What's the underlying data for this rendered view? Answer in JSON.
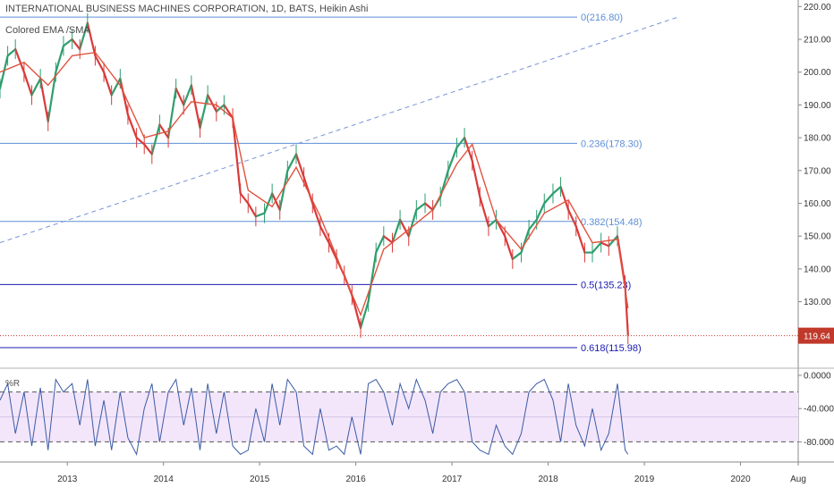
{
  "header": {
    "title": "INTERNATIONAL BUSINESS MACHINES CORPORATION, 1D, BATS, Heikin Ashi",
    "indicator": "Colored EMA /SMA"
  },
  "oscillator": {
    "name": "%R",
    "ticks": [
      "0.0000",
      "-40.0000",
      "-80.0000"
    ],
    "band_fill": "#f3e6fb",
    "line_color": "#3b5ba5"
  },
  "colors": {
    "up": "#2e9e6e",
    "down": "#d93a3a",
    "ma": "#e0533f",
    "fib_light": "#5d8fd6",
    "fib_dark": "#1b1bb0",
    "trend": "#7b93d6",
    "last_price": "#c0392b"
  },
  "chart_data": {
    "type": "line",
    "title": "INTERNATIONAL BUSINESS MACHINES CORPORATION, 1D, BATS, Heikin Ashi",
    "ylim": [
      110,
      222
    ],
    "y_ticks": [
      "220.00",
      "210.00",
      "200.00",
      "190.00",
      "180.00",
      "170.00",
      "160.00",
      "150.00",
      "140.00",
      "130.00"
    ],
    "x_ticks": [
      "2013",
      "2014",
      "2015",
      "2016",
      "2017",
      "2018",
      "2019",
      "2020",
      "Aug"
    ],
    "last_price": "119.64",
    "fib_levels": [
      {
        "label": "0(216.80)",
        "value": 216.8,
        "tone": "light"
      },
      {
        "label": "0.236(178.30)",
        "value": 178.3,
        "tone": "light"
      },
      {
        "label": "0.382(154.48)",
        "value": 154.48,
        "tone": "light"
      },
      {
        "label": "0.5(135.23)",
        "value": 135.23,
        "tone": "dark"
      },
      {
        "label": "0.618(115.98)",
        "value": 115.98,
        "tone": "dark"
      }
    ],
    "price_series": {
      "x": [
        2012.3,
        2012.38,
        2012.46,
        2012.55,
        2012.63,
        2012.72,
        2012.8,
        2012.88,
        2012.96,
        2013.05,
        2013.13,
        2013.21,
        2013.29,
        2013.38,
        2013.46,
        2013.55,
        2013.63,
        2013.72,
        2013.8,
        2013.88,
        2013.96,
        2014.05,
        2014.13,
        2014.21,
        2014.29,
        2014.38,
        2014.46,
        2014.55,
        2014.63,
        2014.72,
        2014.8,
        2014.88,
        2014.96,
        2015.05,
        2015.13,
        2015.21,
        2015.29,
        2015.38,
        2015.46,
        2015.55,
        2015.63,
        2015.72,
        2015.8,
        2015.88,
        2015.96,
        2016.05,
        2016.13,
        2016.21,
        2016.29,
        2016.38,
        2016.46,
        2016.55,
        2016.63,
        2016.72,
        2016.8,
        2016.88,
        2016.96,
        2017.05,
        2017.13,
        2017.21,
        2017.29,
        2017.38,
        2017.46,
        2017.55,
        2017.63,
        2017.72,
        2017.8,
        2017.88,
        2017.96,
        2018.05,
        2018.13,
        2018.21,
        2018.29,
        2018.38,
        2018.46,
        2018.55,
        2018.63,
        2018.72,
        2018.8,
        2018.83
      ],
      "y": [
        195,
        205,
        207,
        200,
        193,
        198,
        185,
        200,
        208,
        210,
        207,
        215,
        205,
        200,
        193,
        198,
        187,
        180,
        178,
        175,
        184,
        180,
        195,
        190,
        196,
        183,
        193,
        188,
        190,
        186,
        163,
        160,
        156,
        157,
        163,
        158,
        170,
        175,
        168,
        160,
        153,
        148,
        143,
        138,
        132,
        122,
        130,
        145,
        150,
        148,
        155,
        150,
        158,
        160,
        158,
        162,
        170,
        177,
        180,
        173,
        162,
        153,
        155,
        150,
        143,
        145,
        152,
        155,
        160,
        163,
        165,
        158,
        153,
        145,
        145,
        148,
        147,
        150,
        135,
        120
      ]
    },
    "ma_series": {
      "x": [
        2012.3,
        2012.55,
        2012.8,
        2013.05,
        2013.29,
        2013.55,
        2013.8,
        2014.05,
        2014.29,
        2014.55,
        2014.72,
        2014.88,
        2015.13,
        2015.38,
        2015.63,
        2015.88,
        2016.05,
        2016.29,
        2016.55,
        2016.8,
        2017.05,
        2017.21,
        2017.46,
        2017.72,
        2017.96,
        2018.21,
        2018.46,
        2018.72,
        2018.83
      ],
      "y": [
        200,
        203,
        196,
        205,
        206,
        196,
        180,
        182,
        191,
        190,
        186,
        164,
        159,
        171,
        156,
        138,
        126,
        146,
        152,
        158,
        172,
        178,
        155,
        146,
        157,
        161,
        148,
        149,
        128
      ]
    },
    "trend_line": {
      "x": [
        2012.3,
        2019.35
      ],
      "y": [
        148,
        216.8
      ]
    },
    "williams_r": {
      "x": [
        2012.3,
        2012.38,
        2012.46,
        2012.55,
        2012.63,
        2012.72,
        2012.8,
        2012.88,
        2012.96,
        2013.05,
        2013.13,
        2013.21,
        2013.29,
        2013.38,
        2013.46,
        2013.55,
        2013.63,
        2013.72,
        2013.8,
        2013.88,
        2013.96,
        2014.05,
        2014.13,
        2014.21,
        2014.29,
        2014.38,
        2014.46,
        2014.55,
        2014.63,
        2014.72,
        2014.8,
        2014.88,
        2014.96,
        2015.05,
        2015.13,
        2015.21,
        2015.29,
        2015.38,
        2015.46,
        2015.55,
        2015.63,
        2015.72,
        2015.8,
        2015.88,
        2015.96,
        2016.05,
        2016.13,
        2016.21,
        2016.29,
        2016.38,
        2016.46,
        2016.55,
        2016.63,
        2016.72,
        2016.8,
        2016.88,
        2016.96,
        2017.05,
        2017.13,
        2017.21,
        2017.29,
        2017.38,
        2017.46,
        2017.55,
        2017.63,
        2017.72,
        2017.8,
        2017.88,
        2017.96,
        2018.05,
        2018.13,
        2018.21,
        2018.29,
        2018.38,
        2018.46,
        2018.55,
        2018.63,
        2018.72,
        2018.8,
        2018.83
      ],
      "y": [
        -30,
        -10,
        -70,
        -20,
        -85,
        -15,
        -90,
        -5,
        -20,
        -10,
        -60,
        -5,
        -85,
        -30,
        -90,
        -20,
        -75,
        -95,
        -40,
        -10,
        -80,
        -20,
        -5,
        -60,
        -15,
        -90,
        -10,
        -70,
        -20,
        -85,
        -95,
        -90,
        -40,
        -80,
        -10,
        -60,
        -5,
        -20,
        -85,
        -95,
        -40,
        -90,
        -85,
        -95,
        -50,
        -95,
        -10,
        -5,
        -20,
        -60,
        -10,
        -40,
        -5,
        -30,
        -70,
        -20,
        -10,
        -5,
        -20,
        -80,
        -90,
        -95,
        -60,
        -85,
        -95,
        -70,
        -20,
        -10,
        -5,
        -30,
        -80,
        -10,
        -60,
        -85,
        -40,
        -90,
        -70,
        -10,
        -90,
        -95
      ]
    }
  }
}
